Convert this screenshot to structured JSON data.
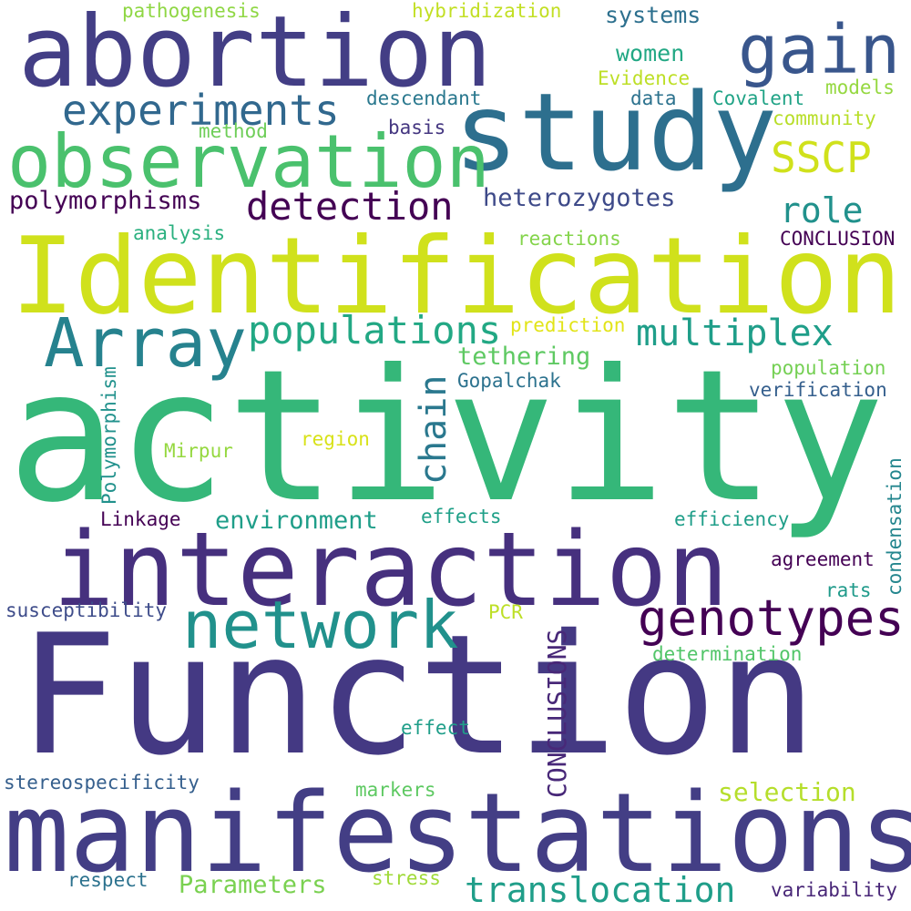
{
  "words": [
    {
      "text": "Function",
      "color": "#443983"
    },
    {
      "text": "activity",
      "color": "#35b779"
    },
    {
      "text": "Identification",
      "color": "#d0e11c"
    },
    {
      "text": "manifestations",
      "color": "#433e85"
    },
    {
      "text": "interaction",
      "color": "#46307e"
    },
    {
      "text": "abortion",
      "color": "#433e85"
    },
    {
      "text": "study",
      "color": "#2d6f8e"
    },
    {
      "text": "observation",
      "color": "#4ac16d"
    },
    {
      "text": "gain",
      "color": "#39568c"
    },
    {
      "text": "network",
      "color": "#21918c"
    },
    {
      "text": "genotypes",
      "color": "#440154"
    },
    {
      "text": "Array",
      "color": "#26828e"
    },
    {
      "text": "experiments",
      "color": "#31688e"
    },
    {
      "text": "detection",
      "color": "#440154"
    },
    {
      "text": "populations",
      "color": "#22a884"
    },
    {
      "text": "multiplex",
      "color": "#1f9e89"
    },
    {
      "text": "SSCP",
      "color": "#d0e11c"
    },
    {
      "text": "translocation",
      "color": "#1f9e89"
    },
    {
      "text": "chain",
      "color": "#2a788e"
    },
    {
      "text": "CONCLUSIONS",
      "color": "#482878"
    },
    {
      "text": "role",
      "color": "#21918c"
    },
    {
      "text": "polymorphisms",
      "color": "#440154"
    },
    {
      "text": "heterozygotes",
      "color": "#3e4a89"
    },
    {
      "text": "systems",
      "color": "#2d708e"
    },
    {
      "text": "women",
      "color": "#22a884"
    },
    {
      "text": "environment",
      "color": "#1f9e89"
    },
    {
      "text": "selection",
      "color": "#b5de2b"
    },
    {
      "text": "tethering",
      "color": "#5ec962"
    },
    {
      "text": "Parameters",
      "color": "#7ad151"
    },
    {
      "text": "pathogenesis",
      "color": "#8fd744"
    },
    {
      "text": "hybridization",
      "color": "#c2df23"
    },
    {
      "text": "Evidence",
      "color": "#bddf26"
    },
    {
      "text": "descendant",
      "color": "#2a788e"
    },
    {
      "text": "data",
      "color": "#2c728e"
    },
    {
      "text": "Covalent",
      "color": "#20a386"
    },
    {
      "text": "models",
      "color": "#95d840"
    },
    {
      "text": "community",
      "color": "#b8de29"
    },
    {
      "text": "method",
      "color": "#6ece58"
    },
    {
      "text": "basis",
      "color": "#453781"
    },
    {
      "text": "analysis",
      "color": "#2ab07f"
    },
    {
      "text": "reactions",
      "color": "#84d44b"
    },
    {
      "text": "CONCLUSION",
      "color": "#440154"
    },
    {
      "text": "prediction",
      "color": "#e2e418"
    },
    {
      "text": "Gopalchak",
      "color": "#2c728e"
    },
    {
      "text": "population",
      "color": "#75d054"
    },
    {
      "text": "verification",
      "color": "#355f8d"
    },
    {
      "text": "Polymorphism",
      "color": "#21918c"
    },
    {
      "text": "Mirpur",
      "color": "#95d840"
    },
    {
      "text": "region",
      "color": "#d8e219"
    },
    {
      "text": "condensation",
      "color": "#24868e"
    },
    {
      "text": "Linkage",
      "color": "#440154"
    },
    {
      "text": "effects",
      "color": "#1fa088"
    },
    {
      "text": "efficiency",
      "color": "#1f9e89"
    },
    {
      "text": "agreement",
      "color": "#440154"
    },
    {
      "text": "rats",
      "color": "#1f9a8a"
    },
    {
      "text": "susceptibility",
      "color": "#3e4c8a"
    },
    {
      "text": "PCR",
      "color": "#bddf26"
    },
    {
      "text": "determination",
      "color": "#52c569"
    },
    {
      "text": "effect",
      "color": "#1f9e89"
    },
    {
      "text": "stereospecificity",
      "color": "#355f8d"
    },
    {
      "text": "markers",
      "color": "#5ec962"
    },
    {
      "text": "respect",
      "color": "#2c728e"
    },
    {
      "text": "stress",
      "color": "#a0da39"
    },
    {
      "text": "variability",
      "color": "#482677"
    }
  ]
}
